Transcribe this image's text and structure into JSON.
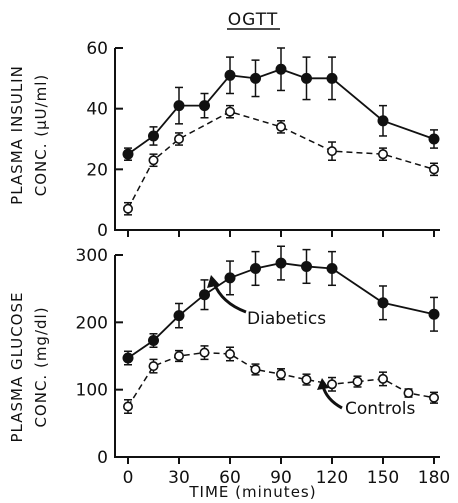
{
  "chart_data": [
    {
      "type": "line",
      "title": "OGTT",
      "ylabel_line1": "PLASMA INSULIN",
      "ylabel_line2": "CONC. (μU/ml)",
      "ylim": [
        0,
        60
      ],
      "yticks": [
        0,
        20,
        40,
        60
      ],
      "xlim": [
        0,
        180
      ],
      "series": [
        {
          "style": "solid-filled",
          "x": [
            0,
            15,
            30,
            45,
            60,
            75,
            90,
            105,
            120,
            150,
            180
          ],
          "y": [
            25,
            31,
            41,
            41,
            51,
            50,
            53,
            50,
            50,
            36,
            30
          ],
          "err": [
            2,
            3,
            6,
            4,
            6,
            6,
            7,
            7,
            7,
            5,
            3
          ]
        },
        {
          "style": "dashed-open",
          "x": [
            0,
            15,
            30,
            60,
            90,
            120,
            150,
            180
          ],
          "y": [
            7,
            23,
            30,
            39,
            34,
            26,
            25,
            20
          ],
          "err": [
            2,
            2,
            2,
            2,
            2,
            3,
            2,
            2
          ]
        }
      ]
    },
    {
      "type": "line",
      "ylabel_line1": "PLASMA GLUCOSE",
      "ylabel_line2": "CONC. (mg/dl)",
      "xlabel": "TIME (minutes)",
      "ylim": [
        0,
        300
      ],
      "yticks": [
        0,
        100,
        200,
        300
      ],
      "xlim": [
        0,
        180
      ],
      "xticks": [
        0,
        30,
        60,
        90,
        120,
        150,
        180
      ],
      "annotations": [
        "Diabetics",
        "Controls"
      ],
      "series": [
        {
          "name": "Diabetics",
          "style": "solid-filled",
          "x": [
            0,
            15,
            30,
            45,
            60,
            75,
            90,
            105,
            120,
            150,
            180
          ],
          "y": [
            147,
            173,
            210,
            241,
            266,
            280,
            288,
            283,
            280,
            229,
            212
          ],
          "err": [
            10,
            10,
            18,
            22,
            25,
            25,
            25,
            25,
            25,
            25,
            25
          ]
        },
        {
          "name": "Controls",
          "style": "dashed-open",
          "x": [
            0,
            15,
            30,
            45,
            60,
            75,
            90,
            105,
            120,
            135,
            150,
            165,
            180
          ],
          "y": [
            75,
            135,
            150,
            155,
            153,
            130,
            123,
            115,
            108,
            112,
            116,
            95,
            88
          ],
          "err": [
            10,
            10,
            8,
            10,
            10,
            8,
            8,
            8,
            10,
            8,
            10,
            6,
            8
          ]
        }
      ]
    }
  ]
}
